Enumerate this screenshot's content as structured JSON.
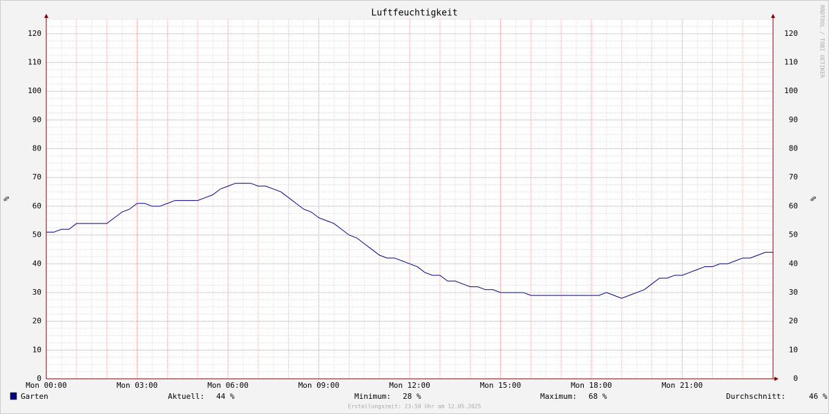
{
  "chart_data": {
    "type": "line",
    "title": "Luftfeuchtigkeit",
    "y_label": "%",
    "y2_label": "%",
    "watermark": "RRDTOOL / TOBI OETIKER",
    "footer": "Erstellungszeit: 23:58 Uhr am 12.05.2025",
    "xlim": [
      0,
      24
    ],
    "xticks": [
      {
        "value": 0,
        "label": "Mon 00:00"
      },
      {
        "value": 3,
        "label": "Mon 03:00"
      },
      {
        "value": 6,
        "label": "Mon 06:00"
      },
      {
        "value": 9,
        "label": "Mon 09:00"
      },
      {
        "value": 12,
        "label": "Mon 12:00"
      },
      {
        "value": 15,
        "label": "Mon 15:00"
      },
      {
        "value": 18,
        "label": "Mon 18:00"
      },
      {
        "value": 21,
        "label": "Mon 21:00"
      }
    ],
    "ylim": [
      0,
      125
    ],
    "yticks": [
      0,
      10,
      20,
      30,
      40,
      50,
      60,
      70,
      80,
      90,
      100,
      110,
      120
    ],
    "grid": true,
    "x": [
      0,
      0.25,
      0.5,
      0.75,
      1,
      1.25,
      1.5,
      1.75,
      2,
      2.25,
      2.5,
      2.75,
      3,
      3.25,
      3.5,
      3.75,
      4,
      4.25,
      4.5,
      4.75,
      5,
      5.25,
      5.5,
      5.75,
      6,
      6.25,
      6.5,
      6.75,
      7,
      7.25,
      7.5,
      7.75,
      8,
      8.25,
      8.5,
      8.75,
      9,
      9.25,
      9.5,
      9.75,
      10,
      10.25,
      10.5,
      10.75,
      11,
      11.25,
      11.5,
      11.75,
      12,
      12.25,
      12.5,
      12.75,
      13,
      13.25,
      13.5,
      13.75,
      14,
      14.25,
      14.5,
      14.75,
      15,
      15.25,
      15.5,
      15.75,
      16,
      16.25,
      16.5,
      16.75,
      17,
      17.25,
      17.5,
      17.75,
      18,
      18.25,
      18.5,
      18.75,
      19,
      19.25,
      19.5,
      19.75,
      20,
      20.25,
      20.5,
      20.75,
      21,
      21.25,
      21.5,
      21.75,
      22,
      22.25,
      22.5,
      22.75,
      23,
      23.25,
      23.5,
      23.75,
      24
    ],
    "series": [
      {
        "name": "Garten",
        "color": "#000080",
        "values": [
          51,
          51,
          52,
          52,
          54,
          54,
          54,
          54,
          54,
          56,
          58,
          59,
          61,
          61,
          60,
          60,
          61,
          62,
          62,
          62,
          62,
          63,
          64,
          66,
          67,
          68,
          68,
          68,
          67,
          67,
          66,
          65,
          63,
          61,
          59,
          58,
          56,
          55,
          54,
          52,
          50,
          49,
          47,
          45,
          43,
          42,
          42,
          41,
          40,
          39,
          37,
          36,
          36,
          34,
          34,
          33,
          32,
          32,
          31,
          31,
          30,
          30,
          30,
          30,
          29,
          29,
          29,
          29,
          29,
          29,
          29,
          29,
          29,
          29,
          30,
          29,
          28,
          29,
          30,
          31,
          33,
          35,
          35,
          36,
          36,
          37,
          38,
          39,
          39,
          40,
          40,
          41,
          42,
          42,
          43,
          44,
          44
        ]
      }
    ],
    "stats": [
      {
        "label": "Aktuell:",
        "value": 44,
        "value_label": "44 %"
      },
      {
        "label": "Minimum:",
        "value": 28,
        "value_label": "28 %"
      },
      {
        "label": "Maximum:",
        "value": 68,
        "value_label": "68 %"
      },
      {
        "label": "Durchschnitt:",
        "value": 46,
        "value_label": "46 %"
      }
    ]
  }
}
